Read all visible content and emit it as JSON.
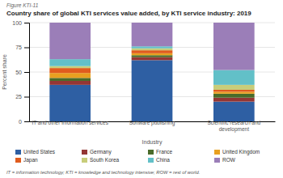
{
  "chart_data": {
    "type": "bar",
    "stacked": true,
    "title": "Country share of global KTI services value added, by KTI service industry: 2019",
    "annotations": [
      "Figure KTI-11",
      "IT = information technology; KTI = knowledge and technology intensive; ROW = rest of world."
    ],
    "xlabel": "Industry",
    "ylabel": "Percent share",
    "categories": [
      "IT and other information services",
      "Software publishing",
      "Scientific research and development"
    ],
    "series": [
      {
        "name": "United States",
        "color": "#2e5fa3",
        "values": [
          37,
          62,
          20
        ]
      },
      {
        "name": "Germany",
        "color": "#943634",
        "values": [
          4,
          3,
          4
        ]
      },
      {
        "name": "France",
        "color": "#4a6b2a",
        "values": [
          3,
          2,
          4
        ]
      },
      {
        "name": "United Kingdom",
        "color": "#e8a020",
        "values": [
          5,
          2,
          2
        ]
      },
      {
        "name": "Japan",
        "color": "#e05c1e",
        "values": [
          5,
          3,
          2
        ]
      },
      {
        "name": "South Korea",
        "color": "#c8cd7a",
        "values": [
          2,
          2,
          5
        ]
      },
      {
        "name": "China",
        "color": "#62c0c8",
        "values": [
          7,
          2,
          15
        ]
      },
      {
        "name": "ROW",
        "color": "#9b7eb8",
        "values": [
          37,
          24,
          48
        ]
      }
    ],
    "ylim": [
      0,
      100
    ],
    "yticks": [
      0,
      25,
      50,
      75,
      100
    ],
    "grid": true,
    "legend": "bottom"
  }
}
